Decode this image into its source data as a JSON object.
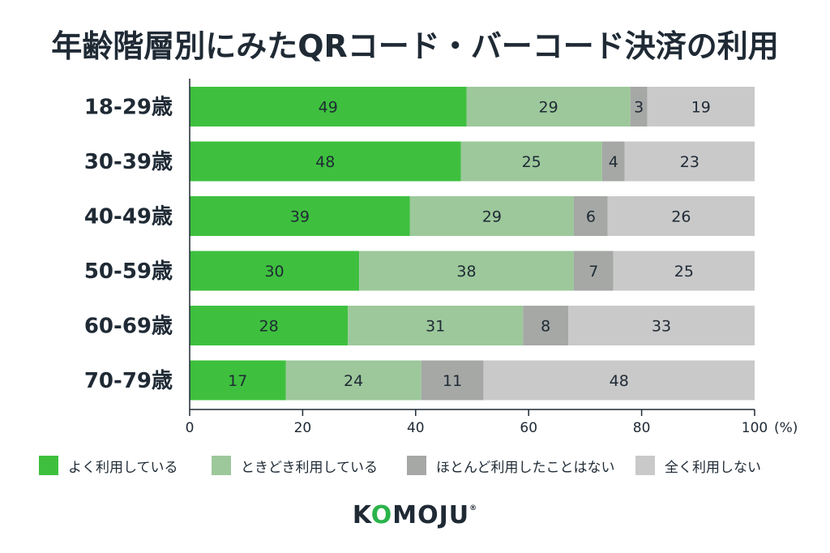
{
  "title": "年齢階層別にみたQRコード・バーコード決済の利用",
  "brand": {
    "logo_text_pre": "K",
    "logo_text_accent": "O",
    "logo_text_post": "MOJU",
    "logo_mark": "®"
  },
  "chart_data": {
    "type": "bar",
    "orientation": "horizontal",
    "stacked": true,
    "categories": [
      "18-29歳",
      "30-39歳",
      "40-49歳",
      "50-59歳",
      "60-69歳",
      "70-79歳"
    ],
    "series": [
      {
        "name": "よく利用している",
        "color": "#3ec03e",
        "values": [
          49,
          48,
          39,
          30,
          28,
          17
        ]
      },
      {
        "name": "ときどき利用している",
        "color": "#9dc89b",
        "values": [
          29,
          25,
          29,
          38,
          31,
          24
        ]
      },
      {
        "name": "ほとんど利用したことはない",
        "color": "#a5a8a5",
        "values": [
          3,
          4,
          6,
          7,
          8,
          11
        ]
      },
      {
        "name": "全く利用しない",
        "color": "#c9c9c9",
        "values": [
          19,
          23,
          26,
          25,
          33,
          48
        ]
      }
    ],
    "xlim": [
      0,
      100
    ],
    "xticks": [
      "0",
      "20",
      "40",
      "60",
      "80",
      "100"
    ],
    "xunit": "(%)",
    "legend_position": "bottom",
    "grid": false
  }
}
